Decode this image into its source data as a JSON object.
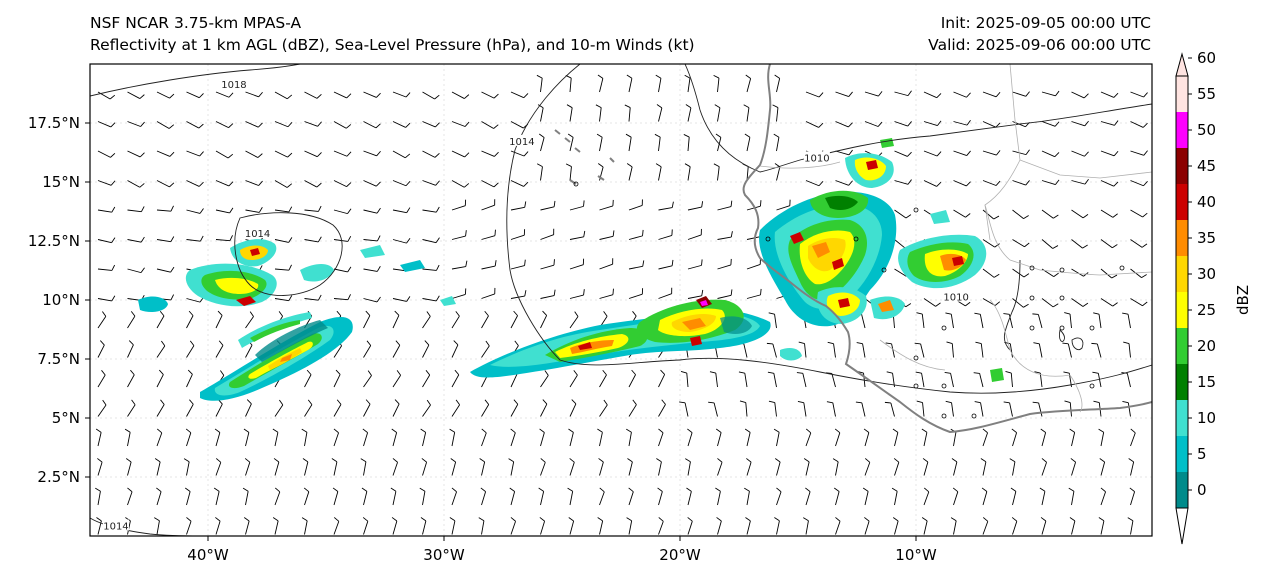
{
  "header": {
    "title_line1": "NSF NCAR 3.75-km MPAS-A",
    "title_line2": "Reflectivity at 1 km AGL (dBZ), Sea-Level Pressure (hPa), and 10-m Winds (kt)",
    "init": "Init: 2025-09-05 00:00 UTC",
    "valid": "Valid: 2025-09-06 00:00 UTC"
  },
  "map": {
    "extent": {
      "lon_min": -45,
      "lon_max": 0,
      "lat_min": 0,
      "lat_max": 20
    },
    "lon_ticks": [
      {
        "value": -40,
        "label": "40°W"
      },
      {
        "value": -30,
        "label": "30°W"
      },
      {
        "value": -20,
        "label": "20°W"
      },
      {
        "value": -10,
        "label": "10°W"
      }
    ],
    "lat_ticks": [
      {
        "value": 2.5,
        "label": "2.5°N"
      },
      {
        "value": 5,
        "label": "5°N"
      },
      {
        "value": 7.5,
        "label": "7.5°N"
      },
      {
        "value": 10,
        "label": "10°N"
      },
      {
        "value": 12.5,
        "label": "12.5°N"
      },
      {
        "value": 15,
        "label": "15°N"
      },
      {
        "value": 17.5,
        "label": "17.5°N"
      }
    ],
    "isobar_labels": [
      {
        "text": "1018",
        "lon": -38.9,
        "lat": 19.1
      },
      {
        "text": "1014",
        "lon": -26.7,
        "lat": 16.7
      },
      {
        "text": "1014",
        "lon": -37.9,
        "lat": 12.8
      },
      {
        "text": "1010",
        "lon": -14.2,
        "lat": 16.0
      },
      {
        "text": "1010",
        "lon": -8.3,
        "lat": 10.1
      },
      {
        "text": "1014",
        "lon": -43.9,
        "lat": 0.4
      }
    ]
  },
  "colorbar": {
    "label": "dBZ",
    "levels": [
      0,
      5,
      10,
      15,
      20,
      25,
      30,
      35,
      40,
      45,
      50,
      55,
      60
    ],
    "tick_labels": [
      "0",
      "5",
      "10",
      "15",
      "20",
      "25",
      "30",
      "35",
      "40",
      "45",
      "50",
      "55",
      "60"
    ],
    "colors": [
      "#008b8b",
      "#00bfc8",
      "#40e0d0",
      "#008000",
      "#32cd32",
      "#ffff00",
      "#ffd700",
      "#ff8c00",
      "#cc0000",
      "#8b0000",
      "#ff00ff",
      "#ffe4e1"
    ]
  },
  "colors": {
    "background": "#ffffff",
    "coastline": "#808080",
    "isobar": "#222222",
    "wind_barb": "#000000"
  }
}
